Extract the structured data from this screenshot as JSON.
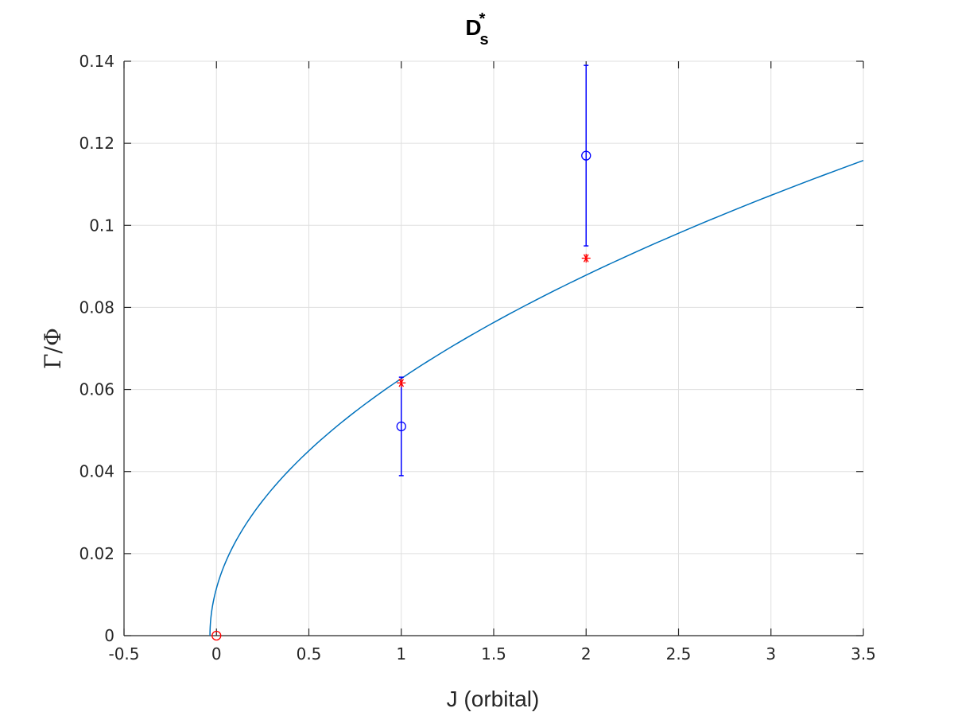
{
  "chart_data": {
    "type": "line",
    "title": "D",
    "title_subscript": "s",
    "title_superscript": "*",
    "xlabel": "J (orbital)",
    "ylabel": "Γ/Φ",
    "xlim": [
      -0.5,
      3.5
    ],
    "ylim": [
      0,
      0.14
    ],
    "xticks": [
      -0.5,
      0,
      0.5,
      1,
      1.5,
      2,
      2.5,
      3,
      3.5
    ],
    "xtick_labels": [
      "-0.5",
      "0",
      "0.5",
      "1",
      "1.5",
      "2",
      "2.5",
      "3",
      "3.5"
    ],
    "yticks": [
      0,
      0.02,
      0.04,
      0.06,
      0.08,
      0.1,
      0.12,
      0.14
    ],
    "ytick_labels": [
      "0",
      "0.02",
      "0.04",
      "0.06",
      "0.08",
      "0.1",
      "0.12",
      "0.14"
    ],
    "grid": true,
    "series": [
      {
        "kind": "curve",
        "color": "#0072bd",
        "formula": "y = a*sqrt(x - x0)",
        "a": 0.0616,
        "x0": -0.035,
        "x_range": [
          -0.035,
          3.5
        ]
      },
      {
        "kind": "errorbar",
        "color": "#0000ff",
        "marker": "circle",
        "x": [
          1,
          2
        ],
        "y": [
          0.051,
          0.117
        ],
        "err_low": [
          0.039,
          0.095
        ],
        "err_high": [
          0.063,
          0.139
        ]
      },
      {
        "kind": "scatter",
        "color": "#ff0000",
        "marker": "asterisk",
        "x": [
          1,
          2
        ],
        "y": [
          0.0616,
          0.092
        ]
      },
      {
        "kind": "scatter",
        "color": "#ff0000",
        "marker": "circle",
        "x": [
          0
        ],
        "y": [
          0
        ]
      }
    ]
  }
}
